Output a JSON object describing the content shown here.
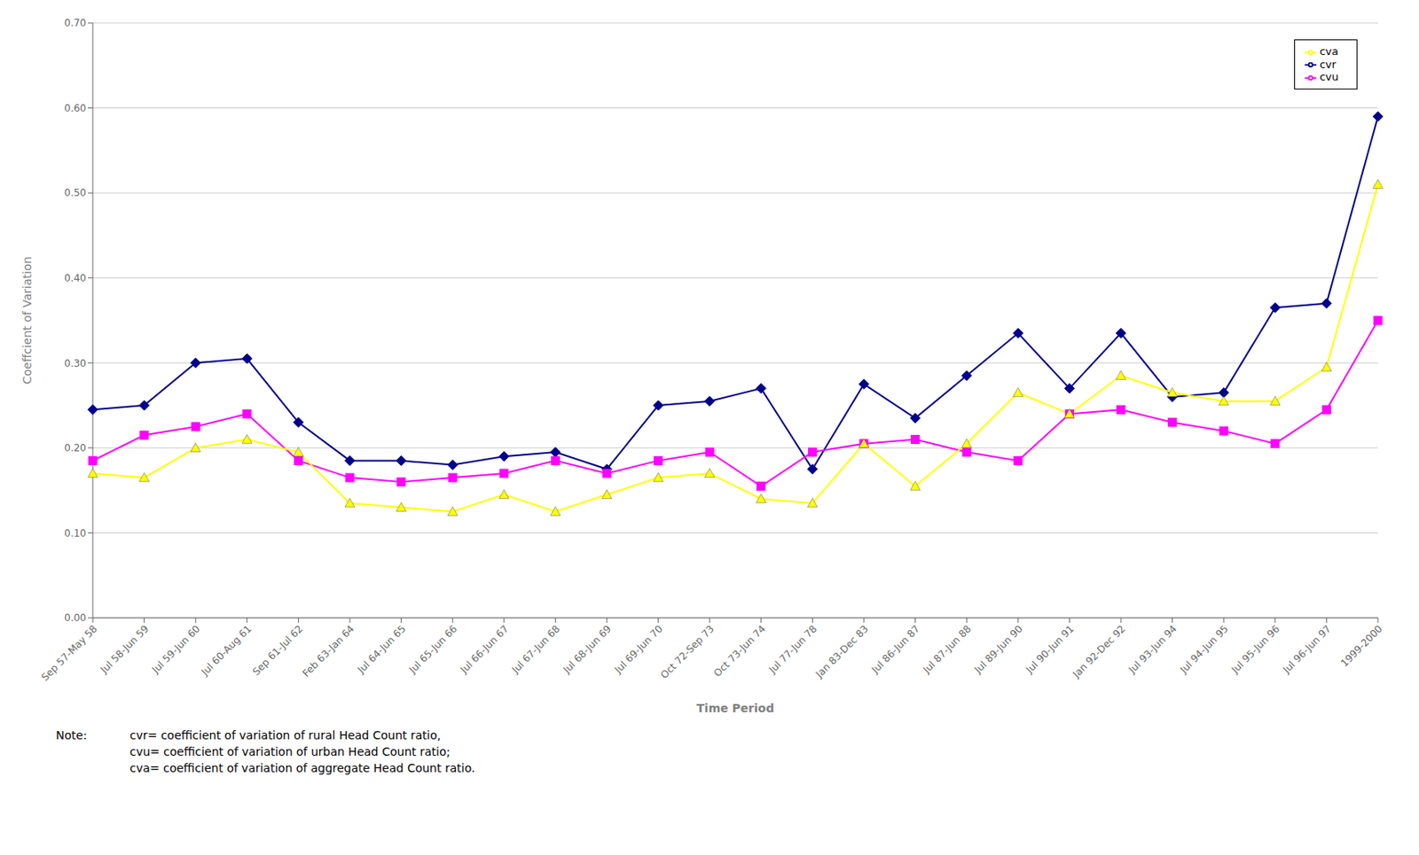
{
  "chart_data": {
    "type": "line",
    "categories": [
      "Sep 57-May 58",
      "Jul 58-Jun 59",
      "Jul 59-Jun 60",
      "Jul 60-Aug 61",
      "Sep 61-Jul 62",
      "Feb 63-Jan 64",
      "Jul 64-Jun 65",
      "Jul 65-Jun 66",
      "Jul 66-Jun 67",
      "Jul 67-Jun 68",
      "Jul 68-Jun 69",
      "Jul 69-Jun 70",
      "Oct 72-Sep 73",
      "Oct 73-Jun 74",
      "Jul 77-Jun 78",
      "Jan 83-Dec 83",
      "Jul 86-Jun 87",
      "Jul 87-Jun 88",
      "Jul 89-Jun 90",
      "Jul 90-Jun 91",
      "Jan 92-Dec 92",
      "Jul 93-Jun 94",
      "Jul 94-Jun 95",
      "Jul 95-Jun 96",
      "Jul 96-Jun 97",
      "1999-2000"
    ],
    "series": [
      {
        "name": "cvr",
        "color": "#00008B",
        "marker": "diamond",
        "values": [
          0.245,
          0.25,
          0.3,
          0.305,
          0.23,
          0.185,
          0.185,
          0.18,
          0.19,
          0.195,
          0.175,
          0.25,
          0.255,
          0.27,
          0.175,
          0.275,
          0.235,
          0.285,
          0.335,
          0.27,
          0.335,
          0.26,
          0.265,
          0.365,
          0.37,
          0.59
        ]
      },
      {
        "name": "cvu",
        "color": "#FF00FF",
        "marker": "square",
        "values": [
          0.185,
          0.215,
          0.225,
          0.24,
          0.185,
          0.165,
          0.16,
          0.165,
          0.17,
          0.185,
          0.17,
          0.185,
          0.195,
          0.155,
          0.195,
          0.205,
          0.21,
          0.195,
          0.185,
          0.24,
          0.245,
          0.23,
          0.22,
          0.205,
          0.245,
          0.35
        ]
      },
      {
        "name": "cva",
        "color": "#FFFF00",
        "marker": "triangle",
        "values": [
          0.17,
          0.165,
          0.2,
          0.21,
          0.195,
          0.135,
          0.13,
          0.125,
          0.145,
          0.125,
          0.145,
          0.165,
          0.17,
          0.14,
          0.135,
          0.205,
          0.155,
          0.205,
          0.265,
          0.24,
          0.285,
          0.265,
          0.255,
          0.255,
          0.295,
          0.51
        ]
      }
    ],
    "xlabel": "Time Period",
    "ylabel": "Coeffcient of Variation",
    "ylim": [
      0.0,
      0.7
    ],
    "yticks": [
      {
        "value": 0.0,
        "label": "0.00"
      },
      {
        "value": 0.1,
        "label": "0.10"
      },
      {
        "value": 0.2,
        "label": "0.20"
      },
      {
        "value": 0.3,
        "label": "0.30"
      },
      {
        "value": 0.4,
        "label": "0.40"
      },
      {
        "value": 0.5,
        "label": "0.50"
      },
      {
        "value": 0.6,
        "label": "0.60"
      },
      {
        "value": 0.7,
        "label": "0.70"
      }
    ],
    "grid": true,
    "legend": "upper right",
    "annotations": [
      "Note:",
      "cvr= coefficient of variation of rural Head Count ratio,",
      "cvu= coefficient of variation of urban Head Count ratio;",
      "cva= coefficient of variation of aggregate Head Count ratio."
    ]
  }
}
